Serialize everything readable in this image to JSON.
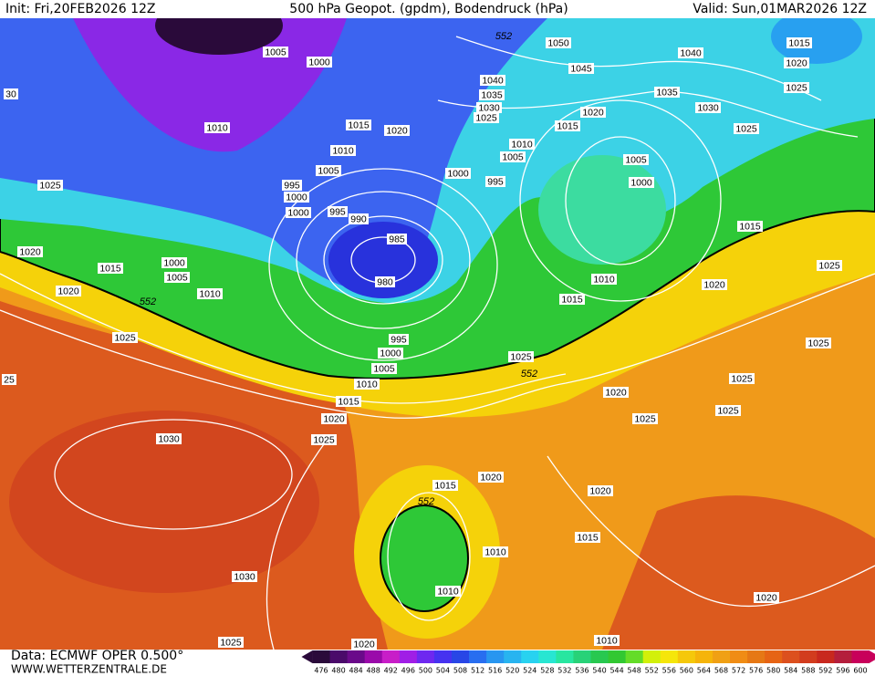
{
  "header": {
    "init": "Init: Fri,20FEB2026 12Z",
    "title": "500 hPa Geopot. (gpdm), Bodendruck (hPa)",
    "valid": "Valid: Sun,01MAR2026 12Z"
  },
  "footer": {
    "data": "Data: ECMWF OPER 0.500°",
    "site": "WWW.WETTERZENTRALE.DE"
  },
  "isobar_labels": [
    "1005",
    "1000",
    "1010",
    "1015",
    "1020",
    "1010",
    "1005",
    "995",
    "1000",
    "1000",
    "995",
    "990",
    "985",
    "980",
    "1025",
    "1020",
    "1015",
    "1000",
    "1005",
    "1010",
    "1020",
    "1025",
    "995",
    "1000",
    "1005",
    "1010",
    "1015",
    "1020",
    "1025",
    "1030",
    "1030",
    "1025",
    "1020",
    "1050",
    "1045",
    "1040",
    "1035",
    "1030",
    "1025",
    "1040",
    "1035",
    "1030",
    "1025",
    "1020",
    "1015",
    "1010",
    "1005",
    "1000",
    "995",
    "1005",
    "1000",
    "1015",
    "1015",
    "1020",
    "1025",
    "1010",
    "1015",
    "1020",
    "1025",
    "1025",
    "1025",
    "1025",
    "1025",
    "1020",
    "1025",
    "1020",
    "1015",
    "1020",
    "1015",
    "1010",
    "1010",
    "1020",
    "1010",
    "30",
    "25"
  ],
  "geopot_labels": [
    "552",
    "552",
    "552",
    "552"
  ],
  "colorbar": {
    "values": [
      476,
      480,
      484,
      488,
      492,
      496,
      500,
      504,
      508,
      512,
      516,
      520,
      524,
      528,
      532,
      536,
      540,
      544,
      548,
      552,
      556,
      560,
      564,
      568,
      572,
      576,
      580,
      584,
      588,
      592,
      596,
      600
    ],
    "colors": [
      "#2a0a3a",
      "#4a0a6a",
      "#6a0a8a",
      "#9a0aaa",
      "#c81ec8",
      "#a01ee6",
      "#6e28f0",
      "#4632f0",
      "#2846e6",
      "#286ef0",
      "#2896f0",
      "#28b4f0",
      "#28d2f0",
      "#28e6d2",
      "#28e6a0",
      "#28d278",
      "#28c850",
      "#32c832",
      "#64dc28",
      "#d2f00a",
      "#f5e60a",
      "#f5c80a",
      "#f5b40a",
      "#f0a014",
      "#f08c14",
      "#e67814",
      "#e66414",
      "#dc501e",
      "#d23c1e",
      "#c8281e",
      "#b41e3c",
      "#c8005a"
    ]
  }
}
